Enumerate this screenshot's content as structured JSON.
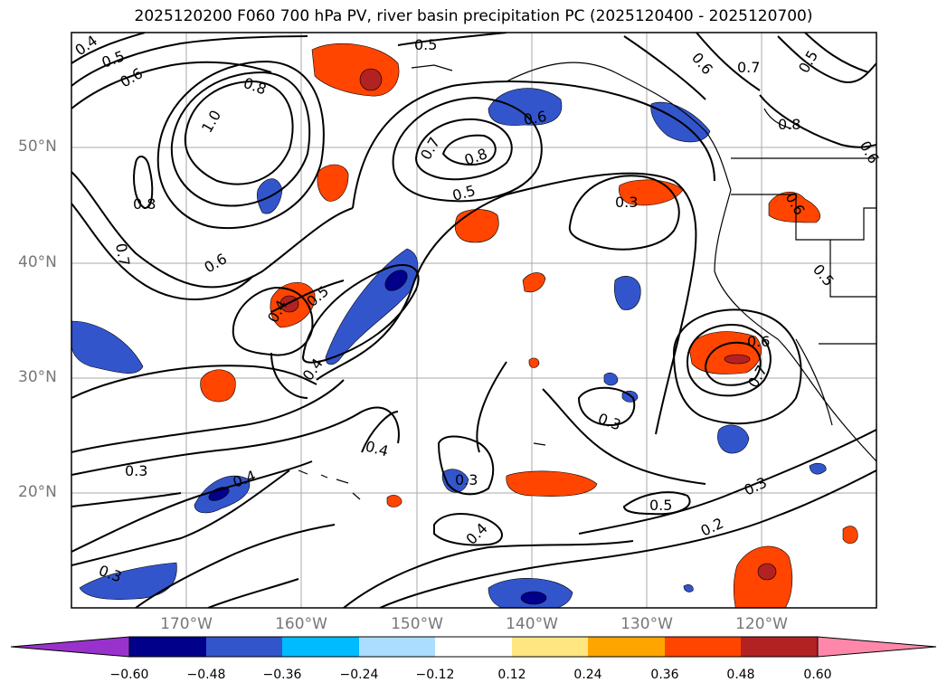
{
  "title": "2025120200 F060 700 hPa PV, river basin precipitation PC (2025120400 - 2025120700)",
  "axes": {
    "lat_labels": [
      "50°N",
      "40°N",
      "30°N",
      "20°N"
    ],
    "lon_labels": [
      "170°W",
      "160°W",
      "150°W",
      "140°W",
      "130°W",
      "120°W"
    ]
  },
  "colors": {
    "neg_extend": "#9932cc",
    "pos_extend": "#ff88aa",
    "bins": [
      "#00008b",
      "#3355cc",
      "#00bbff",
      "#aaddff",
      "#ffffff",
      "#ffe680",
      "#ffa500",
      "#ff4500",
      "#b22222"
    ]
  },
  "colorbar": {
    "ticks": [
      "−0.60",
      "−0.48",
      "−0.36",
      "−0.24",
      "−0.12",
      "0.12",
      "0.24",
      "0.36",
      "0.48",
      "0.60"
    ]
  },
  "contour_labels": [
    "0.4",
    "0.5",
    "0.6",
    "0.8",
    "1.0",
    "0.8",
    "0.7",
    "0.6",
    "0.4",
    "0.5",
    "0.4",
    "0.5",
    "0.7",
    "0.8",
    "0.6",
    "0.5",
    "0.3",
    "0.6",
    "0.7",
    "0.5",
    "0.8",
    "0.6",
    "0.5",
    "0.7",
    "0.6",
    "0.4",
    "0.3",
    "0.3",
    "0.4",
    "0.3",
    "0.5",
    "0.3",
    "0.2",
    "0.4",
    "0.3",
    "0.6"
  ]
}
